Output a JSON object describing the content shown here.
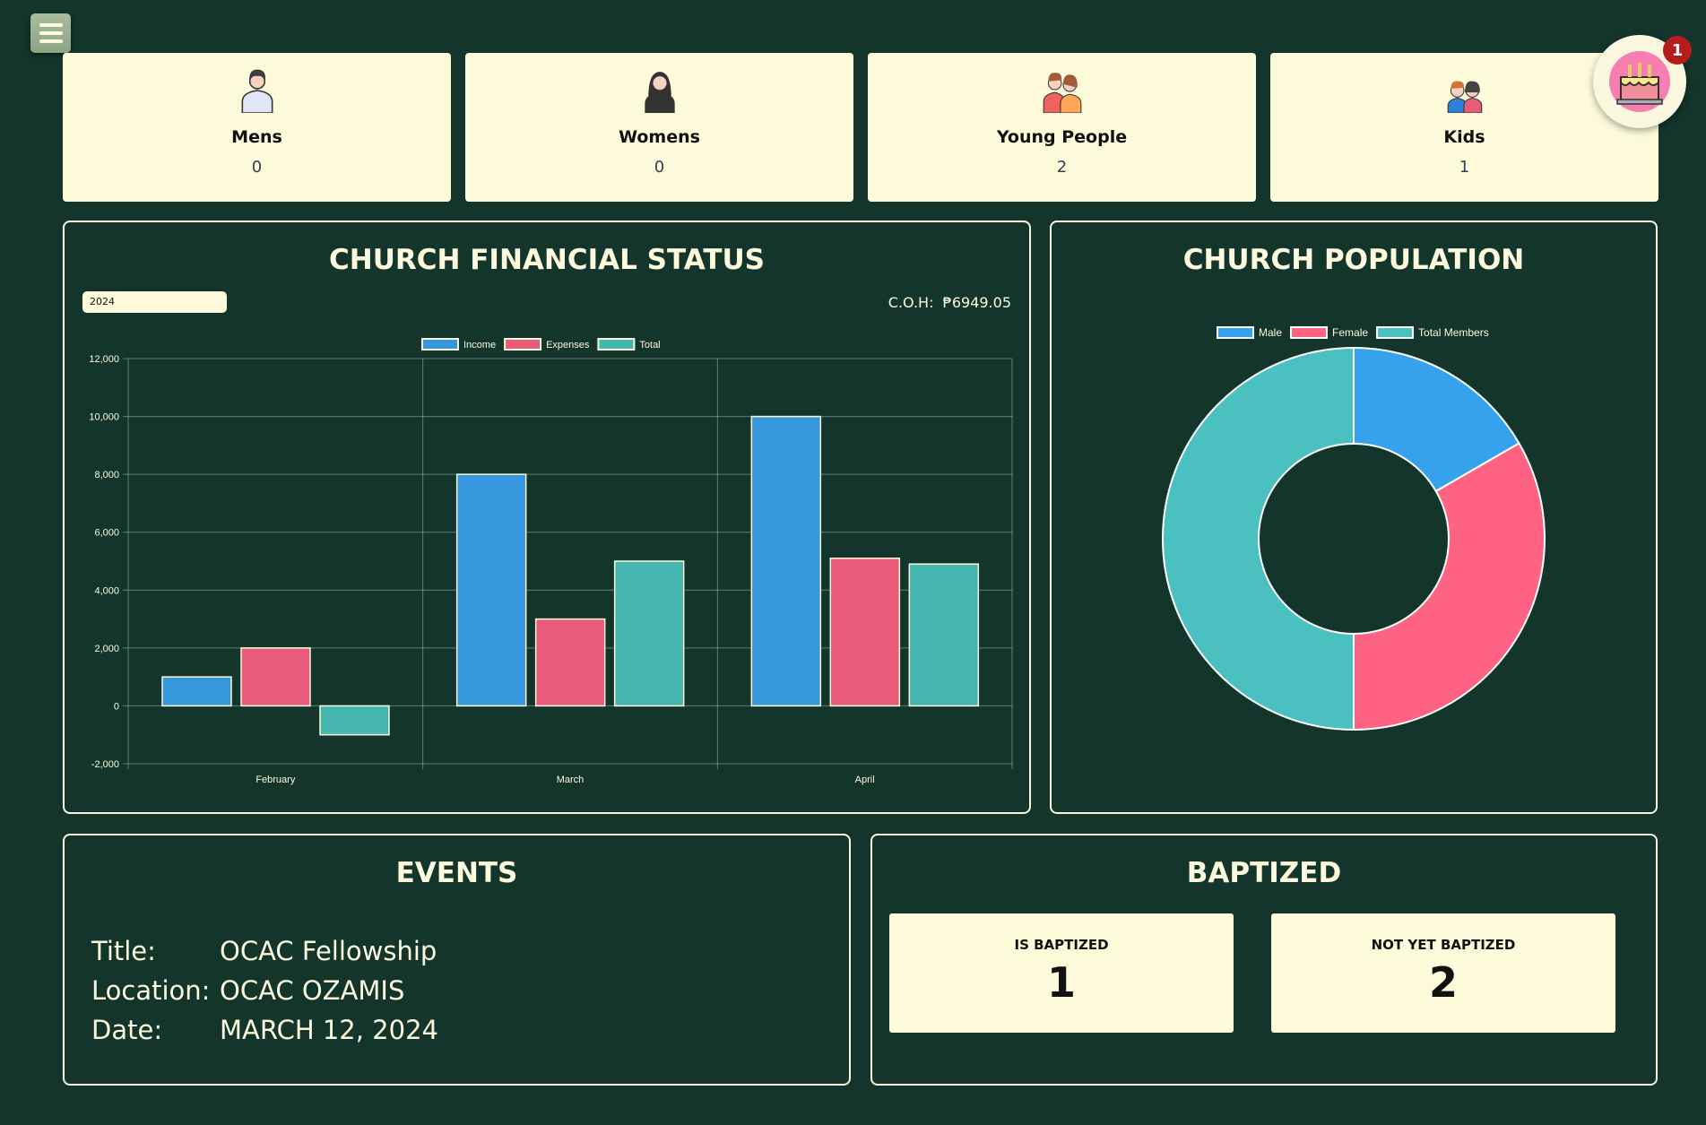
{
  "stats": [
    {
      "label": "Mens",
      "value": "0",
      "icon": "man-icon"
    },
    {
      "label": "Womens",
      "value": "0",
      "icon": "woman-icon"
    },
    {
      "label": "Young People",
      "value": "2",
      "icon": "young-people-icon"
    },
    {
      "label": "Kids",
      "value": "1",
      "icon": "kids-icon"
    }
  ],
  "birthday": {
    "icon": "cake-icon",
    "count": "1"
  },
  "finance": {
    "title": "CHURCH FINANCIAL STATUS",
    "year": "2024",
    "coh_label": "C.O.H:",
    "coh_value": "₱6949.05"
  },
  "population": {
    "title": "CHURCH POPULATION"
  },
  "events": {
    "title": "EVENTS",
    "rows": [
      {
        "k": "Title:",
        "v": "OCAC Fellowship"
      },
      {
        "k": "Location:",
        "v": "OCAC OZAMIS"
      },
      {
        "k": "Date:",
        "v": "MARCH 12, 2024"
      }
    ]
  },
  "baptized": {
    "title": "BAPTIZED",
    "items": [
      {
        "label": "IS BAPTIZED",
        "value": "1"
      },
      {
        "label": "NOT YET BAPTIZED",
        "value": "2"
      }
    ]
  },
  "chart_data": [
    {
      "type": "bar",
      "categories": [
        "February",
        "March",
        "April"
      ],
      "series": [
        {
          "name": "Income",
          "values": [
            1000,
            8000,
            10000
          ],
          "color": "#3697dc"
        },
        {
          "name": "Expenses",
          "values": [
            2000,
            3000,
            5100
          ],
          "color": "#e85c7a"
        },
        {
          "name": "Total",
          "values": [
            -1000,
            5000,
            4900
          ],
          "color": "#45b5b0"
        }
      ],
      "ylim": [
        -2000,
        12000
      ],
      "yticks": [
        -2000,
        0,
        2000,
        4000,
        6000,
        8000,
        10000,
        12000
      ],
      "grid": true,
      "legend": "top"
    },
    {
      "type": "pie",
      "labels": [
        "Male",
        "Female",
        "Total Members"
      ],
      "values": [
        1,
        2,
        3
      ],
      "colors": [
        "#36a2eb",
        "#ff6384",
        "#4bc0c0"
      ],
      "legend": "top"
    }
  ]
}
